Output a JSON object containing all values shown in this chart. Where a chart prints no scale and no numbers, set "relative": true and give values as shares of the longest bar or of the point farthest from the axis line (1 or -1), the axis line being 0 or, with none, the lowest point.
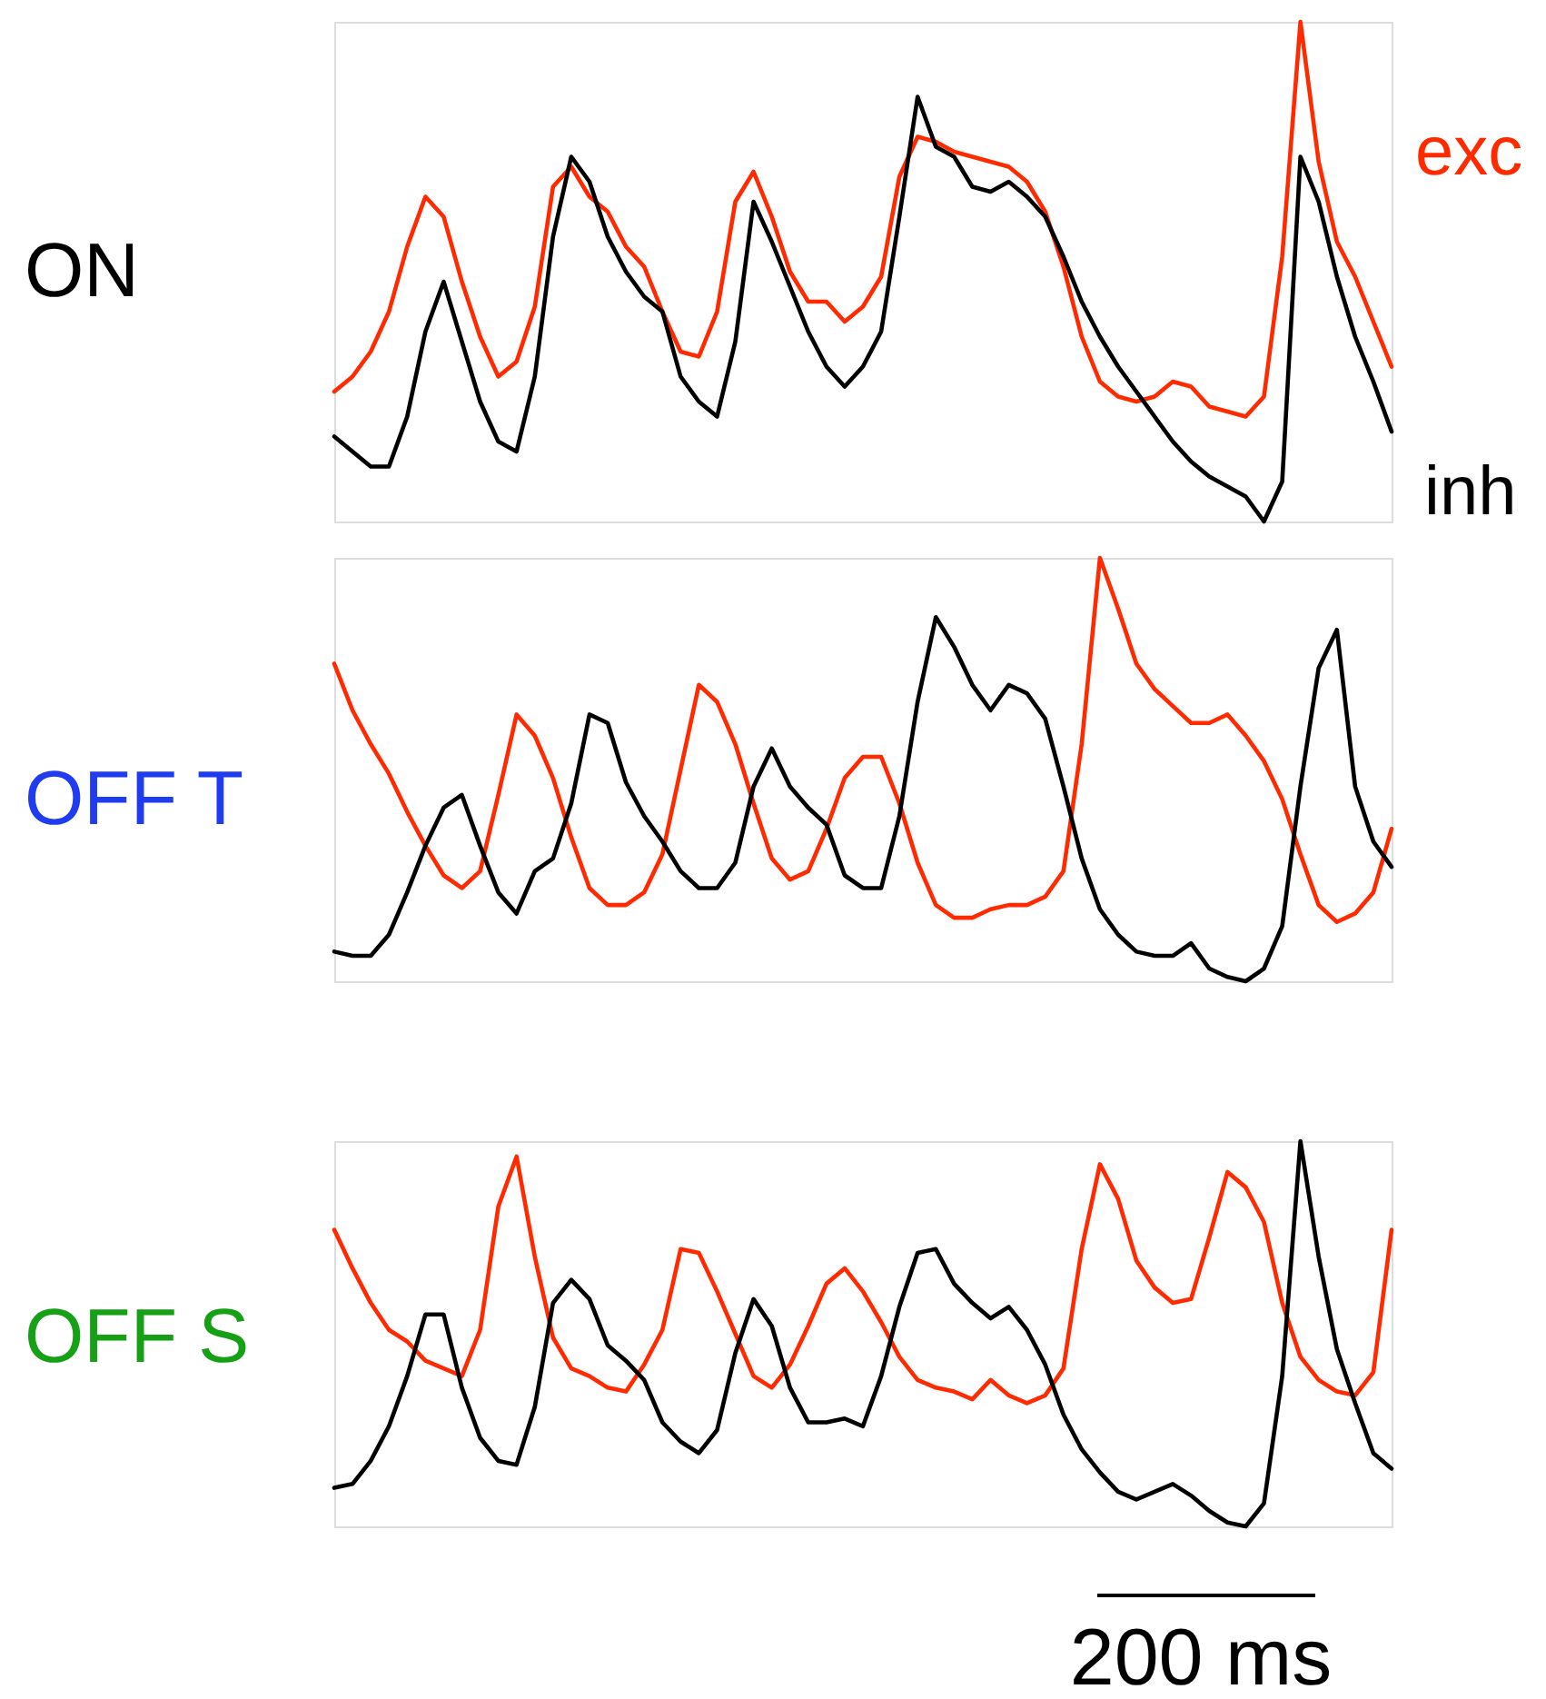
{
  "chart_data": [
    {
      "type": "line",
      "title": "ON",
      "relative": true,
      "categories": [
        null,
        null,
        null,
        null,
        null,
        null,
        null,
        null,
        null,
        null,
        null,
        null,
        null,
        null,
        null,
        null,
        null,
        null,
        null,
        null,
        null,
        null,
        null,
        null,
        null,
        null,
        null,
        null,
        null,
        null,
        null,
        null,
        null,
        null,
        null,
        null,
        null,
        null,
        null,
        null,
        null,
        null,
        null,
        null,
        null,
        null,
        null,
        null,
        null,
        null,
        null,
        null,
        null,
        null,
        null,
        null,
        null,
        null,
        null
      ],
      "series": [
        {
          "name": "exc",
          "color": "#ff2a00",
          "values": [
            0.26,
            0.29,
            0.34,
            0.42,
            0.55,
            0.65,
            0.61,
            0.48,
            0.37,
            0.29,
            0.32,
            0.43,
            0.67,
            0.71,
            0.65,
            0.62,
            0.55,
            0.51,
            0.42,
            0.34,
            0.33,
            0.42,
            0.64,
            0.7,
            0.61,
            0.5,
            0.44,
            0.44,
            0.4,
            0.43,
            0.49,
            0.69,
            0.77,
            0.76,
            0.74,
            0.73,
            0.72,
            0.71,
            0.68,
            0.62,
            0.51,
            0.37,
            0.28,
            0.25,
            0.24,
            0.25,
            0.28,
            0.27,
            0.23,
            0.22,
            0.21,
            0.25,
            0.53,
            1.0,
            0.72,
            0.56,
            0.49,
            0.4,
            0.31
          ]
        },
        {
          "name": "inh",
          "color": "#000000",
          "values": [
            0.17,
            0.14,
            0.11,
            0.11,
            0.21,
            0.38,
            0.48,
            0.36,
            0.24,
            0.16,
            0.14,
            0.29,
            0.57,
            0.73,
            0.68,
            0.57,
            0.5,
            0.45,
            0.42,
            0.29,
            0.24,
            0.21,
            0.36,
            0.64,
            0.56,
            0.47,
            0.38,
            0.31,
            0.27,
            0.31,
            0.38,
            0.61,
            0.85,
            0.75,
            0.73,
            0.67,
            0.66,
            0.68,
            0.65,
            0.61,
            0.53,
            0.44,
            0.37,
            0.31,
            0.26,
            0.21,
            0.16,
            0.12,
            0.09,
            0.07,
            0.05,
            0,
            0.08,
            0.73,
            0.64,
            0.49,
            0.37,
            0.28,
            0.18
          ]
        }
      ]
    },
    {
      "type": "line",
      "title": "OFF T",
      "relative": true,
      "categories": [
        null,
        null,
        null,
        null,
        null,
        null,
        null,
        null,
        null,
        null,
        null,
        null,
        null,
        null,
        null,
        null,
        null,
        null,
        null,
        null,
        null,
        null,
        null,
        null,
        null,
        null,
        null,
        null,
        null,
        null,
        null,
        null,
        null,
        null,
        null,
        null,
        null,
        null,
        null,
        null,
        null,
        null,
        null,
        null,
        null,
        null,
        null,
        null,
        null,
        null,
        null,
        null,
        null,
        null,
        null,
        null,
        null,
        null,
        null
      ],
      "series": [
        {
          "color": "#ff2a00",
          "values": [
            0.75,
            0.64,
            0.56,
            0.49,
            0.4,
            0.32,
            0.25,
            0.22,
            0.26,
            0.44,
            0.63,
            0.58,
            0.48,
            0.34,
            0.22,
            0.18,
            0.18,
            0.21,
            0.3,
            0.5,
            0.7,
            0.66,
            0.56,
            0.42,
            0.29,
            0.24,
            0.26,
            0.36,
            0.48,
            0.53,
            0.53,
            0.42,
            0.28,
            0.18,
            0.15,
            0.15,
            0.17,
            0.18,
            0.18,
            0.2,
            0.26,
            0.56,
            1.0,
            0.88,
            0.75,
            0.69,
            0.65,
            0.61,
            0.61,
            0.63,
            0.58,
            0.52,
            0.43,
            0.3,
            0.18,
            0.14,
            0.16,
            0.21,
            0.36
          ]
        },
        {
          "color": "#000000",
          "values": [
            0.07,
            0.06,
            0.06,
            0.11,
            0.21,
            0.32,
            0.41,
            0.44,
            0.32,
            0.21,
            0.16,
            0.26,
            0.29,
            0.42,
            0.63,
            0.61,
            0.47,
            0.39,
            0.33,
            0.26,
            0.22,
            0.22,
            0.28,
            0.46,
            0.55,
            0.46,
            0.41,
            0.37,
            0.25,
            0.22,
            0.22,
            0.39,
            0.66,
            0.86,
            0.79,
            0.7,
            0.64,
            0.7,
            0.68,
            0.62,
            0.46,
            0.29,
            0.17,
            0.11,
            0.07,
            0.06,
            0.06,
            0.09,
            0.03,
            0.01,
            0,
            0.03,
            0.13,
            0.46,
            0.74,
            0.83,
            0.46,
            0.33,
            0.27
          ]
        }
      ]
    },
    {
      "type": "line",
      "title": "OFF S",
      "relative": true,
      "annotations": [
        "200 ms"
      ],
      "categories": [
        null,
        null,
        null,
        null,
        null,
        null,
        null,
        null,
        null,
        null,
        null,
        null,
        null,
        null,
        null,
        null,
        null,
        null,
        null,
        null,
        null,
        null,
        null,
        null,
        null,
        null,
        null,
        null,
        null,
        null,
        null,
        null,
        null,
        null,
        null,
        null,
        null,
        null,
        null,
        null,
        null,
        null,
        null,
        null,
        null,
        null,
        null,
        null,
        null,
        null,
        null,
        null,
        null,
        null,
        null,
        null,
        null,
        null,
        null
      ],
      "series": [
        {
          "color": "#ff2a00",
          "values": [
            0.77,
            0.67,
            0.58,
            0.51,
            0.48,
            0.43,
            0.41,
            0.39,
            0.51,
            0.83,
            0.96,
            0.7,
            0.49,
            0.41,
            0.39,
            0.36,
            0.35,
            0.42,
            0.51,
            0.72,
            0.71,
            0.61,
            0.5,
            0.39,
            0.36,
            0.42,
            0.52,
            0.63,
            0.67,
            0.61,
            0.53,
            0.44,
            0.38,
            0.36,
            0.35,
            0.33,
            0.38,
            0.34,
            0.32,
            0.34,
            0.41,
            0.72,
            0.94,
            0.85,
            0.69,
            0.62,
            0.58,
            0.59,
            0.75,
            0.92,
            0.88,
            0.79,
            0.58,
            0.44,
            0.38,
            0.35,
            0.34,
            0.4,
            0.77
          ]
        },
        {
          "color": "#000000",
          "values": [
            0.1,
            0.11,
            0.17,
            0.26,
            0.39,
            0.55,
            0.55,
            0.36,
            0.23,
            0.17,
            0.16,
            0.31,
            0.58,
            0.64,
            0.59,
            0.47,
            0.43,
            0.38,
            0.27,
            0.22,
            0.19,
            0.25,
            0.45,
            0.59,
            0.52,
            0.36,
            0.27,
            0.27,
            0.28,
            0.26,
            0.39,
            0.57,
            0.71,
            0.72,
            0.63,
            0.58,
            0.54,
            0.57,
            0.51,
            0.42,
            0.29,
            0.2,
            0.14,
            0.09,
            0.07,
            0.09,
            0.11,
            0.08,
            0.04,
            0.01,
            0,
            0.06,
            0.39,
            1.0,
            0.7,
            0.46,
            0.32,
            0.19,
            0.15
          ]
        }
      ]
    }
  ]
}
